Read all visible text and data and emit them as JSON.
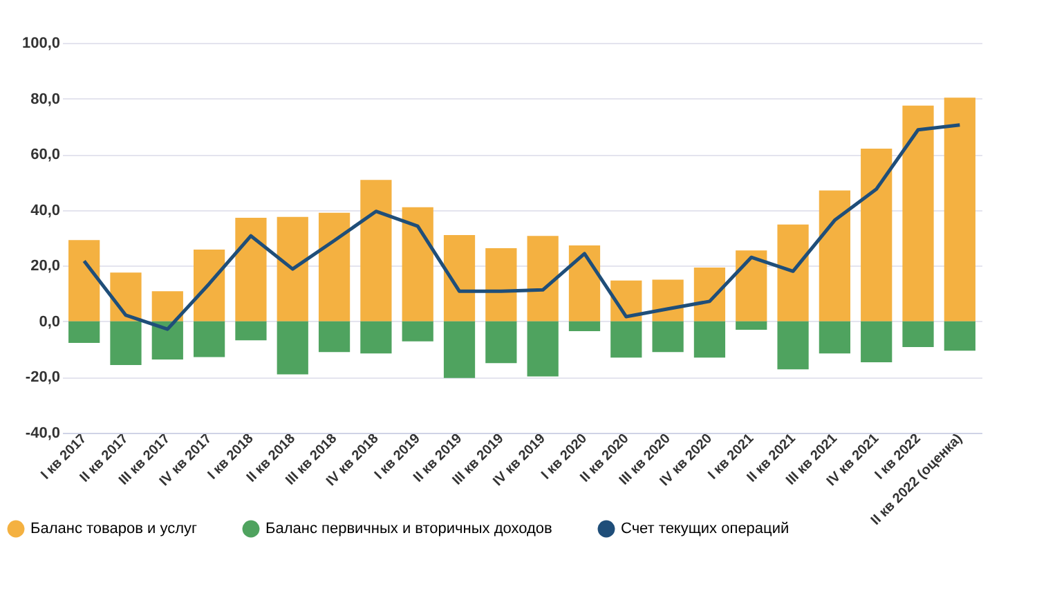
{
  "chart_data": {
    "type": "bar",
    "stacked": true,
    "categories": [
      "I кв 2017",
      "II кв 2017",
      "III кв 2017",
      "IV кв 2017",
      "I кв 2018",
      "II кв 2018",
      "III кв 2018",
      "IV кв 2018",
      "I кв 2019",
      "II кв 2019",
      "III кв 2019",
      "IV кв 2019",
      "I кв 2020",
      "II кв 2020",
      "III кв 2020",
      "IV кв 2020",
      "I кв 2021",
      "II кв 2021",
      "III кв 2021",
      "IV кв 2021",
      "I кв 2022",
      "II кв 2022 (оценка)"
    ],
    "series": [
      {
        "name": "Баланс товаров и услуг",
        "color": "#f4b141",
        "values": [
          29.2,
          17.5,
          10.8,
          25.8,
          37.2,
          37.5,
          39.0,
          50.8,
          41.0,
          31.0,
          26.3,
          30.7,
          27.3,
          14.7,
          15.0,
          19.3,
          25.5,
          34.8,
          47.0,
          62.0,
          77.5,
          80.3
        ]
      },
      {
        "name": "Баланс первичных и вторичных доходов",
        "color": "#4fa35f",
        "values": [
          -7.7,
          -15.7,
          -13.7,
          -12.8,
          -6.8,
          -19.0,
          -11.0,
          -11.5,
          -7.2,
          -20.3,
          -15.0,
          -19.8,
          -3.5,
          -13.0,
          -11.0,
          -13.0,
          -3.0,
          -17.2,
          -11.5,
          -14.7,
          -9.2,
          -10.5
        ]
      },
      {
        "name": "Счет текущих операций",
        "color": "#1f4e79",
        "type": "line",
        "values": [
          21.7,
          2.2,
          -2.8,
          13.5,
          30.7,
          18.8,
          29.0,
          39.5,
          34.2,
          10.8,
          10.8,
          11.3,
          24.3,
          1.7,
          4.5,
          7.2,
          23.0,
          18.0,
          36.3,
          47.5,
          68.8,
          70.5
        ]
      }
    ],
    "ylim": [
      -40,
      100
    ],
    "yticks": [
      {
        "value": -40,
        "label": "-40,0"
      },
      {
        "value": -20,
        "label": "-20,0"
      },
      {
        "value": 0,
        "label": "0,0"
      },
      {
        "value": 20,
        "label": "20,0"
      },
      {
        "value": 40,
        "label": "40,0"
      },
      {
        "value": 60,
        "label": "60,0"
      },
      {
        "value": 80,
        "label": "80,0"
      },
      {
        "value": 100,
        "label": "100,0"
      }
    ],
    "grid": "y",
    "legend": "bottom left",
    "marker": "none",
    "line_style": "solid"
  }
}
